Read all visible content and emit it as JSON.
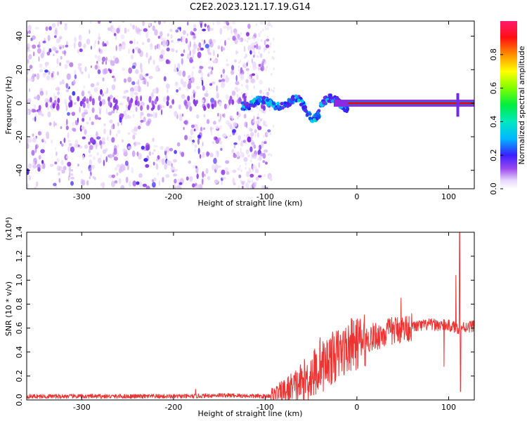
{
  "title": "C2E2.2023.121.17.19.G14",
  "chart_data": [
    {
      "type": "heatmap",
      "xlabel": "Height of straight line (km)",
      "ylabel": "Frequency (Hz)",
      "xlim": [
        -360,
        128
      ],
      "ylim": [
        -51,
        49
      ],
      "x_ticks": [
        -300,
        -200,
        -100,
        0,
        100
      ],
      "y_ticks": [
        -40,
        -20,
        0,
        20,
        40
      ],
      "colorbar": {
        "label": "Normalized spectral amplitude",
        "range": [
          0,
          1
        ],
        "ticks": [
          0.0,
          0.2,
          0.4,
          0.6,
          0.8
        ],
        "tick_labels": [
          "0.0",
          "0.2",
          "0.4",
          "0.6",
          "0.8"
        ],
        "colormap": [
          "#ffffff",
          "#d8b8f8",
          "#8a2be2",
          "#2020ff",
          "#00c8ff",
          "#00e870",
          "#80ff00",
          "#ffff00",
          "#ff8000",
          "#ff0000",
          "#ff1a6e"
        ]
      },
      "features": {
        "noise_region_x": [
          -360,
          -95
        ],
        "noise_amplitude": 0.2,
        "weak_dots_x": [
          -130,
          -90
        ],
        "signal_onset_x": -125,
        "zero_freq_line_x": [
          -10,
          128
        ],
        "zero_freq_line_amplitude": 0.9,
        "spike_x": 110
      }
    },
    {
      "type": "line",
      "xlabel": "Height of straight line (km)",
      "ylabel": "SNR (10 * v/v)",
      "scale_label": "(x10⁴)",
      "xlim": [
        -360,
        128
      ],
      "ylim": [
        0,
        1.4
      ],
      "x_ticks": [
        -300,
        -200,
        -100,
        0,
        100
      ],
      "y_ticks": [
        0,
        0.2,
        0.4,
        0.6,
        0.8,
        1.0,
        1.2,
        1.4
      ],
      "y_tick_labels": [
        "0.0",
        "0.2",
        "0.4",
        "0.6",
        "0.8",
        "1.0",
        "1.2",
        "1.4"
      ],
      "x_tick_labels": [
        "-300",
        "-200",
        "-100",
        "0",
        "100"
      ],
      "color": "#ee3333",
      "trend": {
        "x": [
          -360,
          -180,
          -150,
          -100,
          -85,
          -70,
          -55,
          -40,
          -25,
          -10,
          0,
          20,
          40,
          60,
          80,
          100,
          110,
          128
        ],
        "y": [
          0.03,
          0.03,
          0.04,
          0.03,
          0.05,
          0.1,
          0.17,
          0.27,
          0.36,
          0.43,
          0.47,
          0.53,
          0.58,
          0.61,
          0.63,
          0.62,
          0.6,
          0.62
        ]
      },
      "spikes": [
        {
          "x": -176,
          "y": 0.09
        },
        {
          "x": -40,
          "y": 0.52
        },
        {
          "x": -30,
          "y": 0.5
        },
        {
          "x": -6,
          "y": 0.68
        },
        {
          "x": 48,
          "y": 0.85
        },
        {
          "x": 95,
          "y": 0.28
        },
        {
          "x": 108,
          "y": 1.04
        },
        {
          "x": 112,
          "y": 1.43
        },
        {
          "x": 113,
          "y": 0.07
        }
      ]
    }
  ]
}
